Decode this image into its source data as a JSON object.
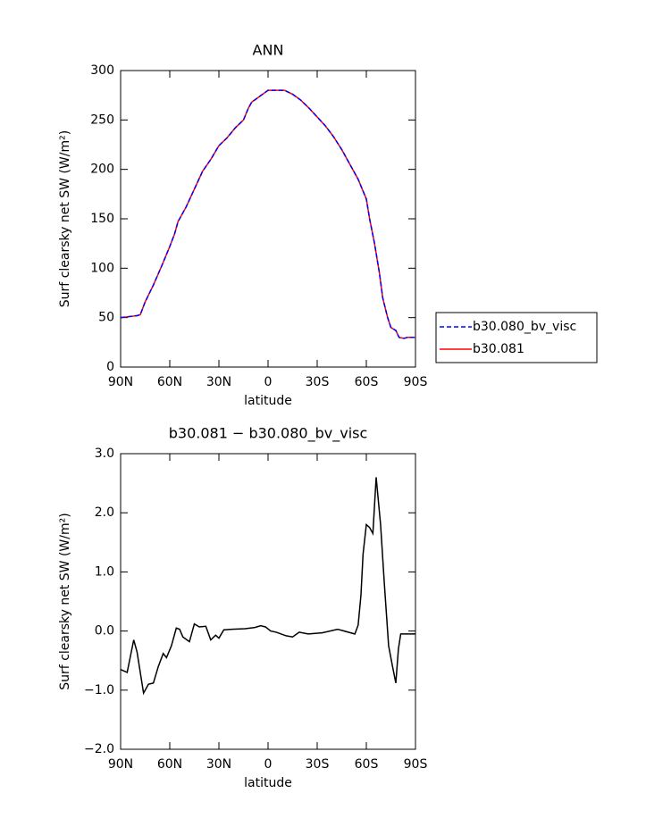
{
  "chart_data": [
    {
      "type": "line",
      "title": "ANN",
      "xlabel": "latitude",
      "ylabel": "Surf clearsky net SW (W/m²)",
      "x": [
        90,
        85,
        80,
        78,
        75,
        70,
        65,
        60,
        57,
        55,
        50,
        45,
        40,
        35,
        30,
        25,
        20,
        15,
        12,
        10,
        5,
        0,
        -5,
        -10,
        -15,
        -20,
        -25,
        -30,
        -35,
        -40,
        -45,
        -50,
        -55,
        -60,
        -62,
        -65,
        -68,
        -70,
        -73,
        -75,
        -78,
        -80,
        -83,
        -85,
        -90
      ],
      "series": [
        {
          "name": "b30.080_bv_visc",
          "color": "#0000ff",
          "linestyle": "dashed",
          "values": [
            50,
            51,
            52,
            53,
            66,
            83,
            102,
            122,
            135,
            147,
            162,
            180,
            198,
            210,
            224,
            232,
            242,
            250,
            262,
            268,
            274,
            280,
            280,
            280,
            276,
            270,
            262,
            253,
            244,
            233,
            220,
            205,
            190,
            170,
            150,
            125,
            95,
            70,
            50,
            40,
            37,
            30,
            29,
            30,
            30
          ]
        },
        {
          "name": "b30.081",
          "color": "#ff0000",
          "linestyle": "solid",
          "values": [
            50,
            51,
            52,
            53,
            66,
            83,
            102,
            122,
            135,
            147,
            162,
            180,
            198,
            210,
            224,
            232,
            242,
            250,
            262,
            268,
            274,
            280,
            280,
            280,
            276,
            270,
            262,
            253,
            244,
            233,
            220,
            205,
            190,
            170,
            150,
            125,
            95,
            70,
            50,
            40,
            37,
            30,
            29,
            30,
            30
          ]
        }
      ],
      "xlim": [
        90,
        -90
      ],
      "xticks": [
        {
          "value": 90,
          "label": "90N"
        },
        {
          "value": 60,
          "label": "60N"
        },
        {
          "value": 30,
          "label": "30N"
        },
        0,
        {
          "value": -30,
          "label": "30S"
        },
        {
          "value": -60,
          "label": "60S"
        },
        {
          "value": -90,
          "label": "90S"
        }
      ],
      "ylim": [
        0,
        300
      ],
      "yticks": [
        0,
        50,
        100,
        150,
        200,
        250,
        300
      ],
      "legend": "right"
    },
    {
      "type": "line",
      "title": "b30.081 − b30.080_bv_visc",
      "xlabel": "latitude",
      "ylabel": "Surf clearsky net SW (W/m²)",
      "x": [
        90,
        86,
        82,
        80,
        76,
        73,
        70,
        67,
        64,
        62,
        59,
        56,
        54,
        52,
        48,
        45,
        42,
        38,
        35,
        32,
        30,
        27,
        22,
        14,
        8,
        4.5,
        1.6,
        -1.6,
        -5,
        -11,
        -15,
        -19,
        -24.5,
        -33,
        -42.5,
        -53,
        -55,
        -56.7,
        -58,
        -60,
        -62,
        -64,
        -66,
        -68.7,
        -71,
        -73.6,
        -76,
        -78,
        -79.6,
        -81,
        -90
      ],
      "series": [
        {
          "name": null,
          "color": "#000000",
          "linestyle": "solid",
          "values": [
            -0.65,
            -0.7,
            -0.15,
            -0.35,
            -1.05,
            -0.9,
            -0.88,
            -0.6,
            -0.38,
            -0.45,
            -0.25,
            0.05,
            0.03,
            -0.1,
            -0.18,
            0.12,
            0.07,
            0.08,
            -0.15,
            -0.07,
            -0.12,
            0.02,
            0.03,
            0.04,
            0.06,
            0.09,
            0.07,
            0.0,
            -0.02,
            -0.08,
            -0.1,
            -0.02,
            -0.05,
            -0.03,
            0.03,
            -0.05,
            0.1,
            0.6,
            1.3,
            1.8,
            1.75,
            1.65,
            2.6,
            1.8,
            0.8,
            -0.25,
            -0.6,
            -0.88,
            -0.3,
            -0.05,
            -0.05
          ]
        }
      ],
      "xlim": [
        90,
        -90
      ],
      "xticks": [
        {
          "value": 90,
          "label": "90N"
        },
        {
          "value": 60,
          "label": "60N"
        },
        {
          "value": 30,
          "label": "30N"
        },
        0,
        {
          "value": -30,
          "label": "30S"
        },
        {
          "value": -60,
          "label": "60S"
        },
        {
          "value": -90,
          "label": "90S"
        }
      ],
      "ylim": [
        -2,
        3
      ],
      "yticks": [
        {
          "value": -2,
          "label": "−2.0"
        },
        {
          "value": -1,
          "label": "−1.0"
        },
        {
          "value": 0,
          "label": "0.0"
        },
        {
          "value": 1,
          "label": "1.0"
        },
        {
          "value": 2,
          "label": "2.0"
        },
        {
          "value": 3,
          "label": "3.0"
        }
      ]
    }
  ]
}
